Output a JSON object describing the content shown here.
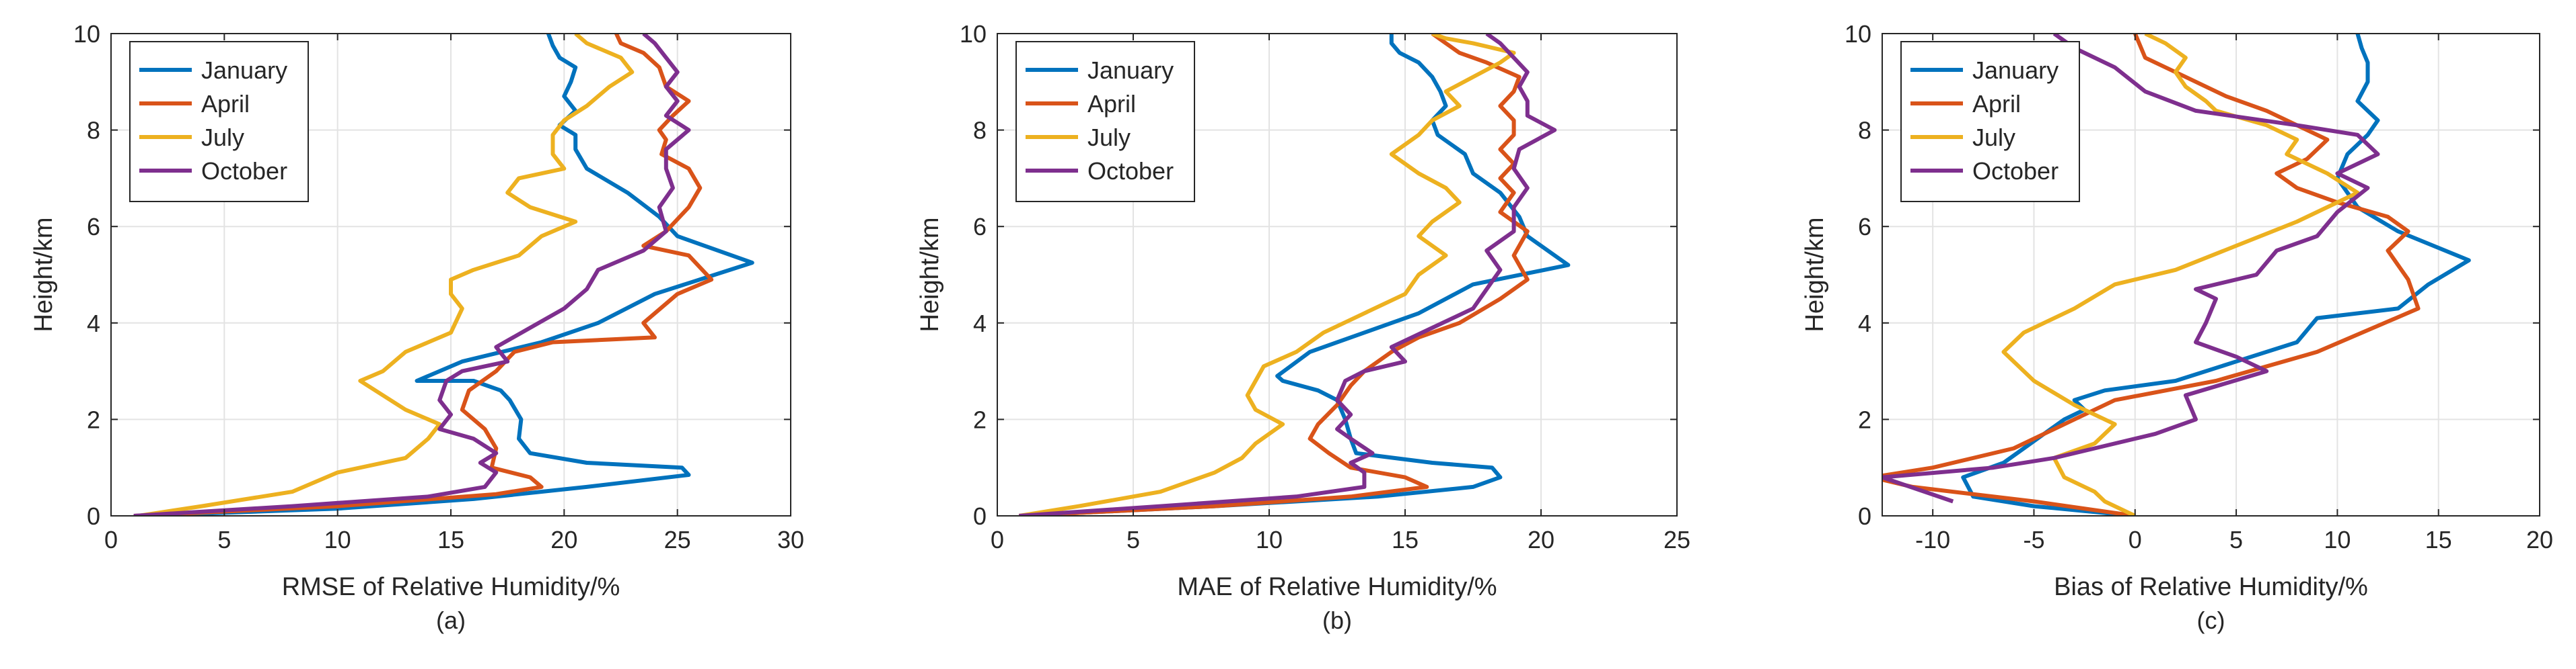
{
  "figure": {
    "legend_colors": [
      "#0072BD",
      "#D95319",
      "#EDB120",
      "#7E2F8E"
    ]
  },
  "chart_data": [
    {
      "type": "line",
      "panel_label": "(a)",
      "xlabel": "RMSE of Relative Humidity/%",
      "ylabel": "Height/km",
      "xlim": [
        0,
        30
      ],
      "ylim": [
        0,
        10
      ],
      "xticks": [
        0,
        5,
        10,
        15,
        20,
        25,
        30
      ],
      "yticks": [
        0,
        2,
        4,
        6,
        8,
        10
      ],
      "grid": true,
      "legend_position": "top-left",
      "series": [
        {
          "name": "January",
          "color": "#0072BD",
          "x": [
            1.2,
            10,
            16,
            21,
            25.5,
            25.2,
            21,
            18.5,
            18,
            18.1,
            17.6,
            17.2,
            16,
            13.5,
            15.5,
            19,
            21.5,
            24,
            28.3,
            25,
            24.2,
            22.8,
            21,
            20.5,
            20.5,
            19.8,
            20.5,
            20,
            20.3,
            20.5,
            19.8,
            19.5,
            19.3
          ],
          "y": [
            0.0,
            0.15,
            0.35,
            0.6,
            0.85,
            1.0,
            1.1,
            1.3,
            1.6,
            2.0,
            2.4,
            2.6,
            2.8,
            2.8,
            3.2,
            3.6,
            4.0,
            4.6,
            5.25,
            5.8,
            6.2,
            6.7,
            7.2,
            7.6,
            7.9,
            8.1,
            8.4,
            8.7,
            9.0,
            9.3,
            9.5,
            9.75,
            10.0
          ]
        },
        {
          "name": "April",
          "color": "#D95319",
          "x": [
            1.0,
            10,
            17,
            19,
            18.5,
            16.8,
            17,
            16.5,
            15.5,
            15.8,
            17,
            17.8,
            19.5,
            24,
            23.5,
            25,
            26.5,
            25.5,
            23.5,
            24.5,
            25.5,
            26,
            25.5,
            24.3,
            24.5,
            24.2,
            24.8,
            25.5,
            24.5,
            24.2,
            23.5,
            22.5,
            22.3
          ],
          "y": [
            0.0,
            0.2,
            0.45,
            0.6,
            0.8,
            1.0,
            1.4,
            1.8,
            2.2,
            2.6,
            3.0,
            3.4,
            3.6,
            3.7,
            4.0,
            4.6,
            4.9,
            5.4,
            5.6,
            5.9,
            6.4,
            6.8,
            7.2,
            7.5,
            7.8,
            8.0,
            8.3,
            8.6,
            8.9,
            9.3,
            9.6,
            9.8,
            10.0
          ]
        },
        {
          "name": "July",
          "color": "#EDB120",
          "x": [
            1.2,
            4,
            8,
            10,
            13,
            14,
            14.5,
            13,
            12,
            11,
            12,
            13,
            15,
            15.5,
            15,
            15,
            16,
            18,
            19,
            20.5,
            18.5,
            17.5,
            18,
            20,
            19.5,
            19.5,
            20,
            21,
            22,
            23,
            22.5,
            21,
            20.5
          ],
          "y": [
            0.0,
            0.2,
            0.5,
            0.9,
            1.2,
            1.6,
            1.9,
            2.2,
            2.5,
            2.8,
            3.0,
            3.4,
            3.8,
            4.3,
            4.6,
            4.9,
            5.1,
            5.4,
            5.8,
            6.1,
            6.4,
            6.7,
            7.0,
            7.2,
            7.5,
            7.9,
            8.2,
            8.5,
            8.9,
            9.2,
            9.5,
            9.8,
            10.0
          ]
        },
        {
          "name": "October",
          "color": "#7E2F8E",
          "x": [
            1.0,
            8,
            14,
            16.5,
            17,
            16.3,
            17,
            16,
            14.5,
            15,
            14.5,
            14.8,
            15.5,
            17.5,
            17,
            18.5,
            20,
            21,
            21.5,
            23.5,
            24.5,
            24.2,
            24.8,
            24.5,
            24.5,
            25.5,
            24.5,
            25,
            24.5,
            25,
            24.5,
            24,
            23.5
          ],
          "y": [
            0.0,
            0.2,
            0.4,
            0.6,
            0.9,
            1.1,
            1.3,
            1.6,
            1.8,
            2.1,
            2.4,
            2.8,
            3.0,
            3.2,
            3.5,
            3.9,
            4.3,
            4.7,
            5.1,
            5.5,
            5.9,
            6.4,
            6.8,
            7.2,
            7.6,
            8.0,
            8.3,
            8.6,
            8.9,
            9.2,
            9.5,
            9.8,
            10.0
          ]
        }
      ]
    },
    {
      "type": "line",
      "panel_label": "(b)",
      "xlabel": "MAE of Relative Humidity/%",
      "ylabel": "Height/km",
      "xlim": [
        0,
        25
      ],
      "ylim": [
        0,
        10
      ],
      "xticks": [
        0,
        5,
        10,
        15,
        20,
        25
      ],
      "yticks": [
        0,
        2,
        4,
        6,
        8,
        10
      ],
      "grid": true,
      "legend_position": "top-left",
      "series": [
        {
          "name": "January",
          "color": "#0072BD",
          "x": [
            0.8,
            8,
            14,
            17.5,
            18.5,
            18.2,
            16,
            13.2,
            13,
            12.8,
            12.5,
            11.8,
            10.5,
            10.3,
            11.5,
            13.5,
            15.5,
            17.5,
            21,
            19.5,
            19.2,
            18.5,
            17.5,
            17.2,
            16.2,
            16,
            16.5,
            16.3,
            16,
            15.5,
            14.8,
            14.5,
            14.5
          ],
          "y": [
            0.0,
            0.2,
            0.4,
            0.6,
            0.8,
            1.0,
            1.1,
            1.3,
            1.6,
            2.0,
            2.4,
            2.6,
            2.8,
            2.9,
            3.4,
            3.8,
            4.2,
            4.8,
            5.2,
            5.8,
            6.2,
            6.7,
            7.1,
            7.5,
            7.9,
            8.2,
            8.5,
            8.8,
            9.1,
            9.4,
            9.6,
            9.8,
            10.0
          ]
        },
        {
          "name": "April",
          "color": "#D95319",
          "x": [
            0.8,
            8,
            13,
            15.8,
            15,
            13,
            12.2,
            11.5,
            11.8,
            12.5,
            13,
            13.5,
            14.5,
            15.5,
            17,
            18.5,
            19.5,
            19,
            19.5,
            18.5,
            19,
            18.5,
            19,
            18.5,
            19,
            19,
            18.5,
            19,
            19.2,
            18,
            17,
            16.5,
            16
          ],
          "y": [
            0.0,
            0.2,
            0.4,
            0.6,
            0.8,
            1.0,
            1.3,
            1.6,
            1.9,
            2.3,
            2.7,
            3.0,
            3.4,
            3.7,
            4.0,
            4.5,
            4.9,
            5.4,
            5.9,
            6.3,
            6.7,
            7.0,
            7.3,
            7.6,
            7.9,
            8.2,
            8.5,
            8.8,
            9.1,
            9.4,
            9.6,
            9.8,
            10.0
          ]
        },
        {
          "name": "July",
          "color": "#EDB120",
          "x": [
            0.8,
            3,
            6,
            8,
            9,
            9.5,
            10.5,
            9.5,
            9.2,
            9.5,
            9.8,
            11,
            12,
            13.5,
            15,
            15.5,
            16.5,
            15.5,
            16,
            17,
            16.5,
            15.5,
            14.5,
            15.5,
            16,
            17,
            16.5,
            17.5,
            18.5,
            19,
            17.5,
            16.5,
            16
          ],
          "y": [
            0.0,
            0.2,
            0.5,
            0.9,
            1.2,
            1.5,
            1.9,
            2.2,
            2.5,
            2.8,
            3.1,
            3.4,
            3.8,
            4.2,
            4.6,
            5.0,
            5.4,
            5.8,
            6.1,
            6.5,
            6.8,
            7.1,
            7.5,
            7.9,
            8.2,
            8.5,
            8.8,
            9.1,
            9.4,
            9.6,
            9.8,
            9.9,
            10.0
          ]
        },
        {
          "name": "October",
          "color": "#7E2F8E",
          "x": [
            0.8,
            6,
            11,
            13.5,
            13.5,
            13,
            13.8,
            13,
            12.5,
            13,
            12.5,
            12.8,
            13.5,
            15,
            14.5,
            16,
            17.5,
            18,
            18.5,
            18,
            19,
            19,
            19.5,
            19,
            19.2,
            20.5,
            19.5,
            19.5,
            19.2,
            19.5,
            19,
            18.5,
            18
          ],
          "y": [
            0.0,
            0.2,
            0.4,
            0.6,
            0.9,
            1.1,
            1.3,
            1.6,
            1.8,
            2.1,
            2.4,
            2.8,
            3.0,
            3.2,
            3.5,
            3.9,
            4.3,
            4.7,
            5.1,
            5.5,
            5.9,
            6.4,
            6.8,
            7.2,
            7.6,
            8.0,
            8.3,
            8.6,
            8.9,
            9.2,
            9.5,
            9.8,
            10.0
          ]
        }
      ]
    },
    {
      "type": "line",
      "panel_label": "(c)",
      "xlabel": "Bias of Relative Humidity/%",
      "ylabel": "Height/km",
      "xlim": [
        -12.5,
        20
      ],
      "ylim": [
        0,
        10
      ],
      "xticks": [
        -10,
        -5,
        0,
        5,
        10,
        15,
        20
      ],
      "yticks": [
        0,
        2,
        4,
        6,
        8,
        10
      ],
      "grid": true,
      "legend_position": "top-left",
      "series": [
        {
          "name": "January",
          "color": "#0072BD",
          "x": [
            0,
            -5,
            -8,
            -8.5,
            -6.5,
            -5.5,
            -4.5,
            -3.5,
            -2.5,
            -3,
            -1.5,
            2,
            5,
            8,
            9,
            13,
            14.5,
            16.5,
            13,
            11,
            10,
            10.5,
            11.5,
            12,
            11,
            11.5,
            11.5,
            11.2,
            11
          ],
          "y": [
            0.0,
            0.2,
            0.4,
            0.8,
            1.1,
            1.4,
            1.7,
            2.0,
            2.2,
            2.4,
            2.6,
            2.8,
            3.2,
            3.6,
            4.1,
            4.3,
            4.8,
            5.3,
            5.9,
            6.4,
            7.0,
            7.5,
            7.9,
            8.2,
            8.6,
            9.0,
            9.4,
            9.7,
            10.0
          ]
        },
        {
          "name": "April",
          "color": "#D95319",
          "x": [
            0,
            -5,
            -11,
            -13,
            -10,
            -6,
            -3.5,
            -1,
            4,
            9,
            14,
            13.5,
            12.5,
            13.5,
            12.5,
            10,
            8,
            7,
            8.5,
            9.5,
            8,
            6.5,
            4.5,
            2.5,
            0.5,
            0
          ],
          "y": [
            0.0,
            0.3,
            0.6,
            0.8,
            1.0,
            1.4,
            1.9,
            2.4,
            2.8,
            3.4,
            4.3,
            4.9,
            5.5,
            5.9,
            6.2,
            6.5,
            6.8,
            7.1,
            7.4,
            7.8,
            8.1,
            8.4,
            8.7,
            9.1,
            9.5,
            10.0
          ]
        },
        {
          "name": "July",
          "color": "#EDB120",
          "x": [
            0,
            -1.5,
            -2,
            -3.5,
            -4,
            -2,
            -1,
            -3,
            -5,
            -6.5,
            -5.5,
            -3,
            -1,
            2,
            5,
            8,
            11,
            9.5,
            7.5,
            8,
            6.5,
            4,
            3.5,
            2.5,
            2,
            2.5,
            1.5,
            0.5
          ],
          "y": [
            0.0,
            0.3,
            0.5,
            0.8,
            1.2,
            1.5,
            1.9,
            2.3,
            2.8,
            3.4,
            3.8,
            4.3,
            4.8,
            5.1,
            5.6,
            6.1,
            6.7,
            7.1,
            7.5,
            7.8,
            8.1,
            8.4,
            8.6,
            8.9,
            9.2,
            9.5,
            9.8,
            10.0
          ]
        },
        {
          "name": "October",
          "color": "#7E2F8E",
          "x": [
            -9,
            -12.5,
            -7,
            -4,
            -2,
            1,
            3,
            2.5,
            6.5,
            5,
            3,
            3.5,
            4,
            3,
            6,
            7,
            9,
            10,
            11.5,
            10,
            12,
            11,
            8,
            3,
            0.5,
            -1,
            -3,
            -4
          ],
          "y": [
            0.3,
            0.8,
            1.0,
            1.2,
            1.4,
            1.7,
            2.0,
            2.5,
            3.0,
            3.3,
            3.6,
            4.0,
            4.5,
            4.7,
            5.0,
            5.5,
            5.8,
            6.3,
            6.8,
            7.1,
            7.5,
            7.9,
            8.1,
            8.4,
            8.8,
            9.3,
            9.7,
            10.0
          ]
        }
      ]
    }
  ]
}
